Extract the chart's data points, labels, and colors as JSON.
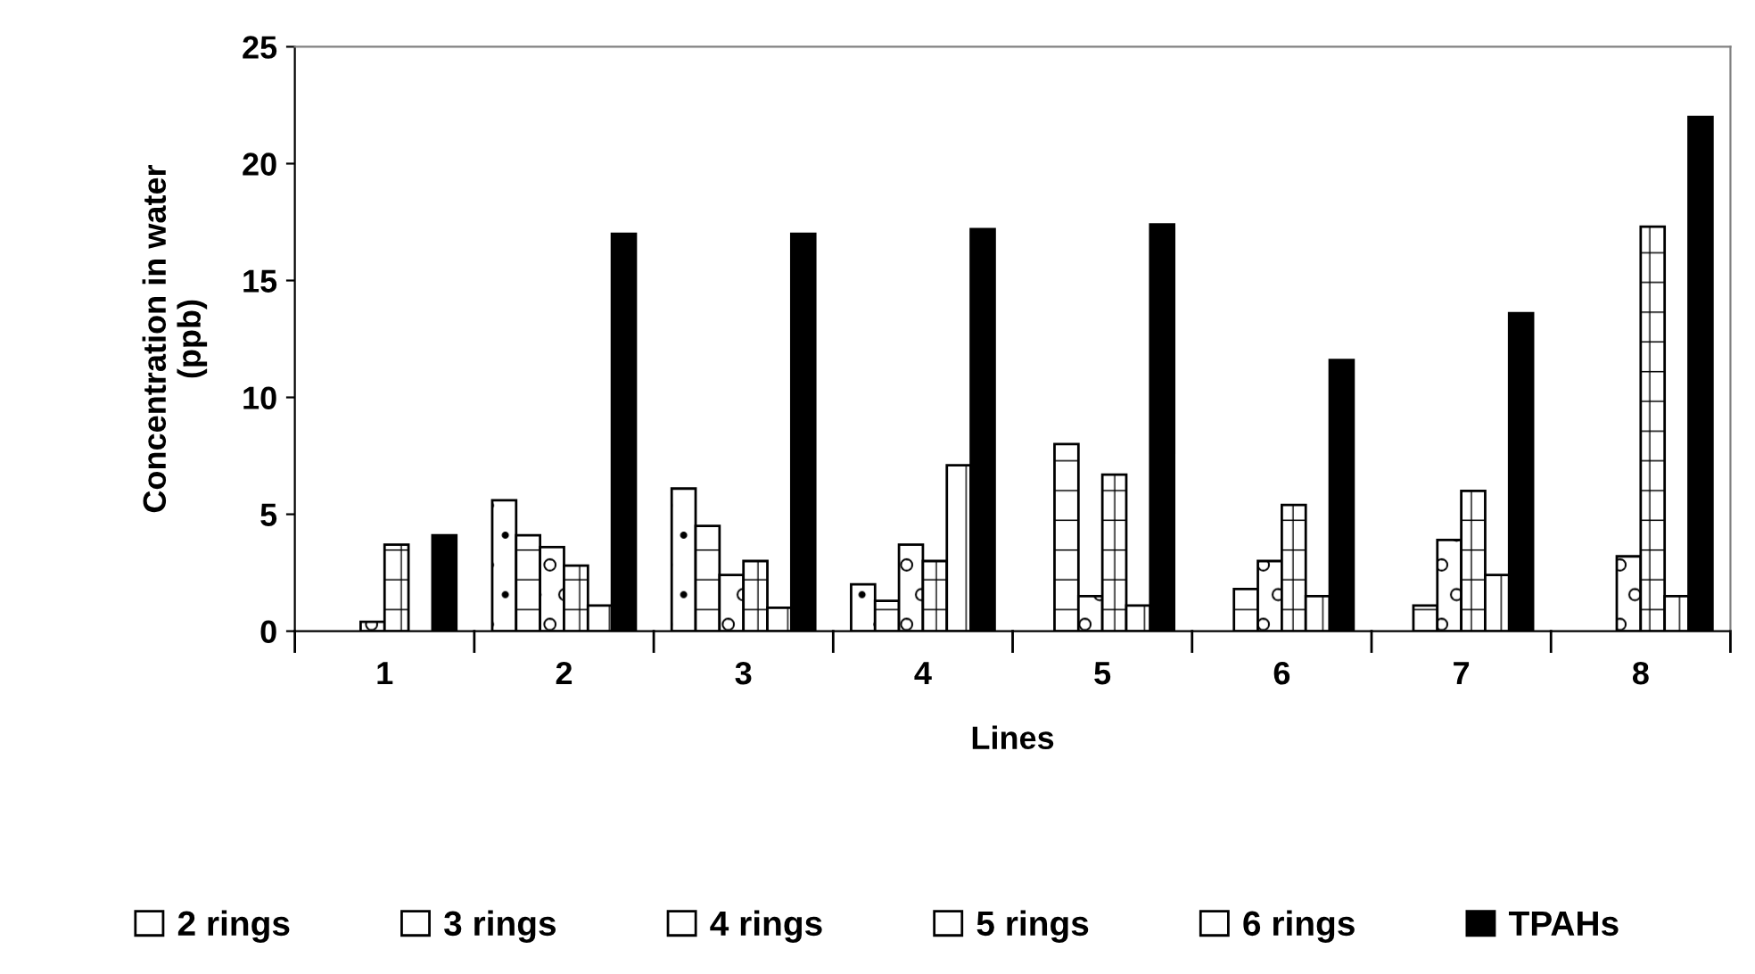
{
  "chart_data": {
    "type": "bar",
    "xlabel": "Lines",
    "ylabel": "Concentration in water\n(ppb)",
    "categories": [
      "1",
      "2",
      "3",
      "4",
      "5",
      "6",
      "7",
      "8"
    ],
    "series": [
      {
        "name": "2 rings",
        "color": "#ffffff",
        "values": [
          0,
          5.6,
          6.1,
          2.0,
          0,
          0,
          0,
          0
        ]
      },
      {
        "name": "3 rings",
        "color": "#ffffff",
        "values": [
          0,
          4.1,
          4.5,
          1.3,
          8.0,
          1.8,
          1.1,
          0
        ]
      },
      {
        "name": "4 rings",
        "color": "#ffffff",
        "values": [
          0.4,
          3.6,
          2.4,
          3.7,
          1.5,
          3.0,
          3.9,
          3.2
        ]
      },
      {
        "name": "5 rings",
        "color": "#ffffff",
        "values": [
          3.7,
          2.8,
          3.0,
          3.0,
          6.7,
          5.4,
          6.0,
          17.3
        ]
      },
      {
        "name": "6 rings",
        "color": "#ffffff",
        "values": [
          0,
          1.1,
          1.0,
          7.1,
          1.1,
          1.5,
          2.4,
          1.5
        ]
      },
      {
        "name": "TPAHs",
        "color": "#000000",
        "values": [
          4.1,
          17.0,
          17.0,
          17.2,
          17.4,
          11.6,
          13.6,
          22.0
        ]
      }
    ],
    "ylim": [
      0,
      25
    ],
    "yticks": [
      0,
      5,
      10,
      15,
      20,
      25
    ],
    "grid": false,
    "legend": "bottom"
  }
}
